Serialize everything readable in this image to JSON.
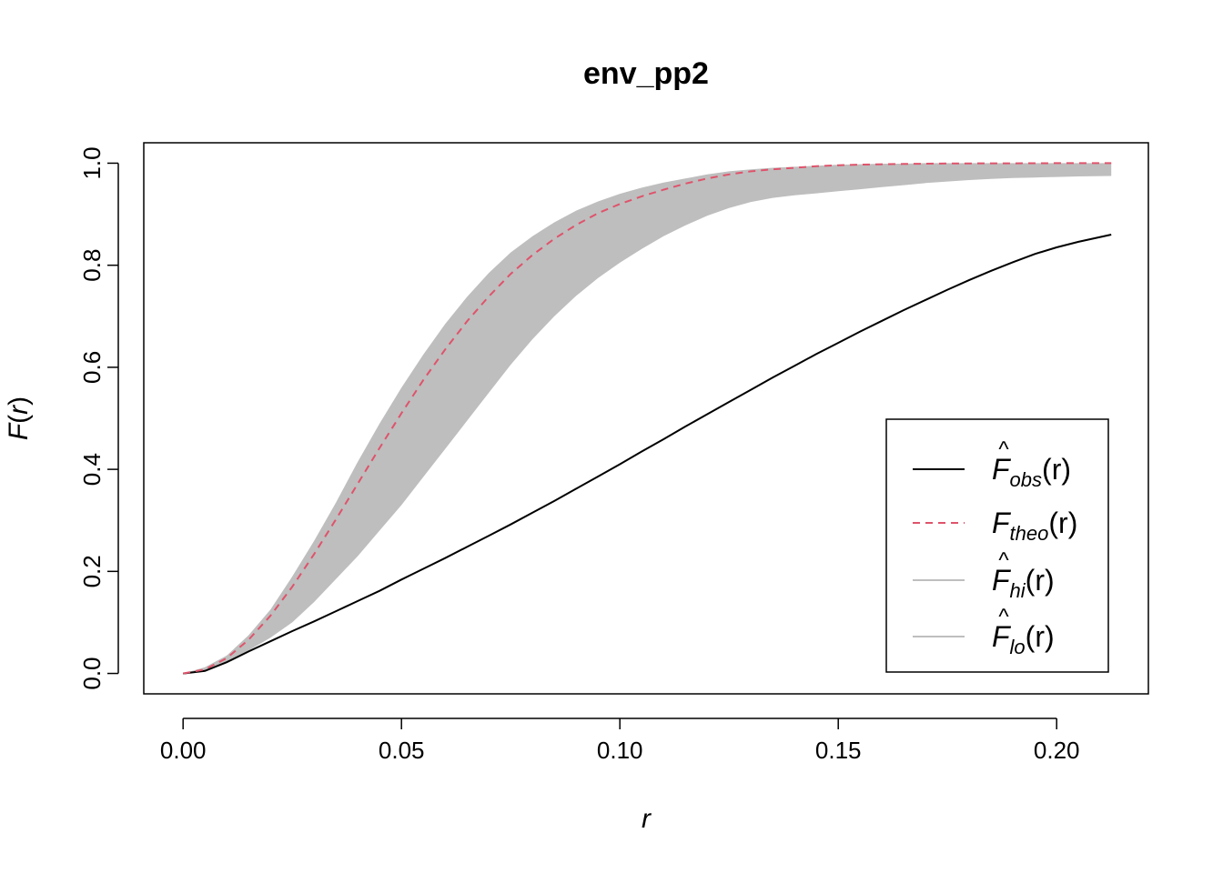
{
  "chart_data": {
    "type": "line",
    "title": "env_pp2",
    "xlabel": "r",
    "ylabel": "F(r)",
    "xlim": [
      -0.009,
      0.221
    ],
    "ylim": [
      -0.04,
      1.04
    ],
    "x_ticks": [
      0.0,
      0.05,
      0.1,
      0.15,
      0.2
    ],
    "x_tick_labels": [
      "0.00",
      "0.05",
      "0.10",
      "0.15",
      "0.20"
    ],
    "y_ticks": [
      0.0,
      0.2,
      0.4,
      0.6,
      0.8,
      1.0
    ],
    "y_tick_labels": [
      "0.0",
      "0.2",
      "0.4",
      "0.6",
      "0.8",
      "1.0"
    ],
    "grid": false,
    "legend_position": "bottom-right",
    "x": [
      0.0,
      0.005,
      0.01,
      0.015,
      0.02,
      0.025,
      0.03,
      0.035,
      0.04,
      0.045,
      0.05,
      0.055,
      0.06,
      0.065,
      0.07,
      0.075,
      0.08,
      0.085,
      0.09,
      0.095,
      0.1,
      0.105,
      0.11,
      0.115,
      0.12,
      0.125,
      0.13,
      0.135,
      0.14,
      0.145,
      0.15,
      0.155,
      0.16,
      0.165,
      0.17,
      0.175,
      0.18,
      0.185,
      0.19,
      0.195,
      0.2,
      0.205,
      0.2125
    ],
    "series": [
      {
        "name": "obs",
        "color": "#000000",
        "style": "solid",
        "values": [
          0.0,
          0.005,
          0.022,
          0.043,
          0.063,
          0.083,
          0.102,
          0.122,
          0.142,
          0.162,
          0.184,
          0.205,
          0.226,
          0.248,
          0.27,
          0.292,
          0.315,
          0.338,
          0.362,
          0.386,
          0.41,
          0.435,
          0.459,
          0.484,
          0.508,
          0.532,
          0.556,
          0.58,
          0.603,
          0.626,
          0.648,
          0.67,
          0.691,
          0.712,
          0.732,
          0.752,
          0.771,
          0.789,
          0.806,
          0.822,
          0.835,
          0.846,
          0.86
        ]
      },
      {
        "name": "theo",
        "color": "#DF536B",
        "style": "dashed",
        "values": [
          0.0,
          0.008,
          0.03,
          0.066,
          0.113,
          0.17,
          0.234,
          0.302,
          0.372,
          0.442,
          0.51,
          0.575,
          0.635,
          0.69,
          0.739,
          0.783,
          0.82,
          0.852,
          0.879,
          0.902,
          0.92,
          0.935,
          0.948,
          0.96,
          0.97,
          0.978,
          0.984,
          0.988,
          0.991,
          0.994,
          0.996,
          0.997,
          0.998,
          0.9985,
          0.999,
          0.9993,
          0.9995,
          0.9997,
          0.9998,
          0.9999,
          1.0,
          1.0,
          1.0
        ]
      },
      {
        "name": "hi",
        "color": "#BEBEBE",
        "style": "solid",
        "values": [
          0.0,
          0.012,
          0.035,
          0.075,
          0.125,
          0.19,
          0.26,
          0.335,
          0.415,
          0.49,
          0.56,
          0.625,
          0.685,
          0.738,
          0.785,
          0.825,
          0.857,
          0.884,
          0.907,
          0.925,
          0.94,
          0.952,
          0.962,
          0.97,
          0.978,
          0.984,
          0.988,
          0.991,
          0.993,
          0.995,
          0.997,
          0.998,
          0.999,
          0.999,
          1.0,
          1.0,
          1.0,
          1.0,
          1.0,
          1.0,
          1.0,
          1.0,
          1.0
        ]
      },
      {
        "name": "lo",
        "color": "#BEBEBE",
        "style": "solid",
        "values": [
          0.0,
          0.004,
          0.022,
          0.045,
          0.07,
          0.1,
          0.14,
          0.185,
          0.23,
          0.28,
          0.33,
          0.385,
          0.44,
          0.495,
          0.55,
          0.605,
          0.655,
          0.7,
          0.74,
          0.775,
          0.805,
          0.832,
          0.857,
          0.878,
          0.897,
          0.912,
          0.924,
          0.932,
          0.937,
          0.941,
          0.945,
          0.949,
          0.953,
          0.957,
          0.961,
          0.964,
          0.967,
          0.969,
          0.971,
          0.972,
          0.973,
          0.974,
          0.975
        ]
      }
    ]
  },
  "legend": [
    {
      "key": "obs",
      "symbol": "F",
      "hat": "^",
      "sub": "obs",
      "paren": "(r)",
      "color": "#000000",
      "style": "solid"
    },
    {
      "key": "theo",
      "symbol": "F",
      "hat": "",
      "sub": "theo",
      "paren": "(r)",
      "color": "#DF536B",
      "style": "dashed"
    },
    {
      "key": "hi",
      "symbol": "F",
      "hat": "^",
      "sub": "hi",
      "paren": "(r)",
      "color": "#BEBEBE",
      "style": "solid"
    },
    {
      "key": "lo",
      "symbol": "F",
      "hat": "^",
      "sub": "lo",
      "paren": "(r)",
      "color": "#BEBEBE",
      "style": "solid"
    }
  ],
  "band_color": "#BEBEBE"
}
